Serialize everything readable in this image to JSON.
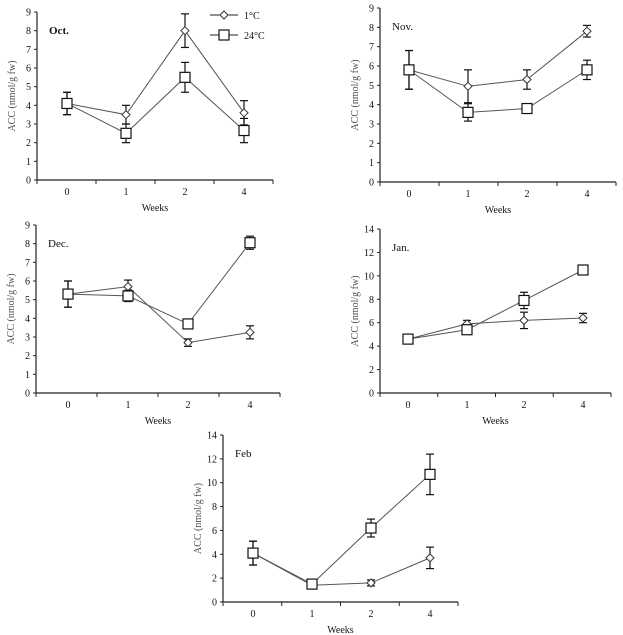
{
  "chart_data": [
    {
      "type": "line",
      "title": "Oct.",
      "xlabel": "Weeks",
      "ylabel": "ACC (nmol/g fw)",
      "categories": [
        "0",
        "1",
        "2",
        "4"
      ],
      "ylim": [
        0,
        9
      ],
      "yticks": [
        0,
        1,
        2,
        3,
        4,
        5,
        6,
        7,
        8,
        9
      ],
      "grid": false,
      "legend": {
        "placement": "top-right",
        "entries": [
          "1°C",
          "24°C"
        ]
      },
      "series": [
        {
          "name": "1°C",
          "marker": "diamond",
          "values": [
            4.1,
            3.5,
            8.0,
            3.6
          ],
          "error": [
            0.6,
            0.5,
            0.9,
            0.65
          ]
        },
        {
          "name": "24°C",
          "marker": "square",
          "values": [
            4.1,
            2.5,
            5.5,
            2.65
          ],
          "error": [
            0.6,
            0.5,
            0.8,
            0.65
          ]
        }
      ]
    },
    {
      "type": "line",
      "title": "Nov.",
      "xlabel": "Weeks",
      "ylabel": "ACC (nmol/g fw)",
      "categories": [
        "0",
        "1",
        "2",
        "4"
      ],
      "ylim": [
        0,
        9
      ],
      "yticks": [
        0,
        1,
        2,
        3,
        4,
        5,
        6,
        7,
        8,
        9
      ],
      "grid": false,
      "series": [
        {
          "name": "1°C",
          "marker": "diamond",
          "values": [
            5.8,
            4.95,
            5.3,
            7.8
          ],
          "error": [
            1.0,
            0.85,
            0.5,
            0.3
          ]
        },
        {
          "name": "24°C",
          "marker": "square",
          "values": [
            5.8,
            3.6,
            3.8,
            5.8
          ],
          "error": [
            1.0,
            0.45,
            0.2,
            0.5
          ]
        }
      ]
    },
    {
      "type": "line",
      "title": "Dec.",
      "xlabel": "Weeks",
      "ylabel": "ACC (nmol/g fw)",
      "categories": [
        "0",
        "1",
        "2",
        "4"
      ],
      "ylim": [
        0,
        9
      ],
      "yticks": [
        0,
        1,
        2,
        3,
        4,
        5,
        6,
        7,
        8,
        9
      ],
      "grid": false,
      "series": [
        {
          "name": "1°C",
          "marker": "diamond",
          "values": [
            5.3,
            5.7,
            2.7,
            3.25
          ],
          "error": [
            0.7,
            0.35,
            0.2,
            0.35
          ]
        },
        {
          "name": "24°C",
          "marker": "square",
          "values": [
            5.3,
            5.2,
            3.7,
            8.05
          ],
          "error": [
            0.7,
            0.3,
            0.25,
            0.35
          ]
        }
      ]
    },
    {
      "type": "line",
      "title": "Jan.",
      "xlabel": "Weeks",
      "ylabel": "ACC (nmol/g fw)",
      "categories": [
        "0",
        "1",
        "2",
        "4"
      ],
      "ylim": [
        0,
        14
      ],
      "yticks": [
        0,
        2,
        4,
        6,
        8,
        10,
        12,
        14
      ],
      "grid": false,
      "series": [
        {
          "name": "1°C",
          "marker": "diamond",
          "values": [
            4.6,
            5.9,
            6.2,
            6.4
          ],
          "error": [
            0.1,
            0.3,
            0.7,
            0.4
          ]
        },
        {
          "name": "24°C",
          "marker": "square",
          "values": [
            4.6,
            5.4,
            7.9,
            10.5
          ],
          "error": [
            0.1,
            0.4,
            0.7,
            0.3
          ]
        }
      ]
    },
    {
      "type": "line",
      "title": "Feb",
      "xlabel": "Weeks",
      "ylabel": "ACC (nmol/g fw)",
      "categories": [
        "0",
        "1",
        "2",
        "4"
      ],
      "ylim": [
        0,
        14
      ],
      "yticks": [
        0,
        2,
        4,
        6,
        8,
        10,
        12,
        14
      ],
      "grid": false,
      "series": [
        {
          "name": "1°C",
          "marker": "diamond",
          "values": [
            4.1,
            1.4,
            1.6,
            3.7
          ],
          "error": [
            1.0,
            0.2,
            0.25,
            0.9
          ]
        },
        {
          "name": "24°C",
          "marker": "square",
          "values": [
            4.1,
            1.5,
            6.2,
            10.7
          ],
          "error": [
            1.0,
            0.3,
            0.75,
            1.7
          ]
        }
      ]
    }
  ]
}
